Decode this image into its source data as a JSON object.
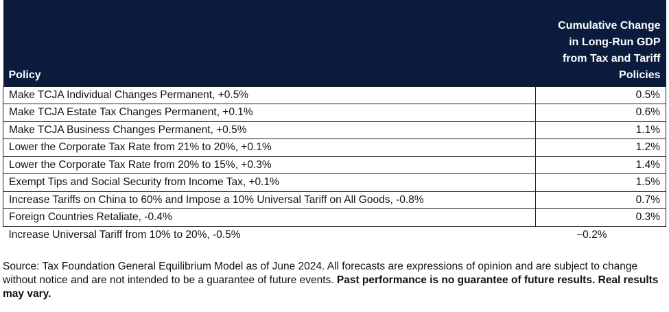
{
  "table": {
    "header": {
      "policy": "Policy",
      "change_lines": [
        "Cumulative Change",
        "in Long-Run GDP",
        "from Tax and Tariff",
        "Policies"
      ]
    },
    "rows": [
      {
        "policy": "Make TCJA Individual Changes Permanent, +0.5%",
        "value": "0.5%"
      },
      {
        "policy": "Make TCJA Estate Tax Changes Permanent, +0.1%",
        "value": "0.6%"
      },
      {
        "policy": "Make TCJA Business Changes Permanent, +0.5%",
        "value": "1.1%"
      },
      {
        "policy": "Lower the Corporate Tax Rate from 21% to 20%, +0.1%",
        "value": "1.2%"
      },
      {
        "policy": "Lower the Corporate Tax Rate from 20% to 15%, +0.3%",
        "value": "1.4%"
      },
      {
        "policy": "Exempt Tips and Social Security from Income Tax, +0.1%",
        "value": "1.5%"
      },
      {
        "policy": "Increase Tariffs on China to 60% and Impose a 10% Universal Tariff on All Goods, -0.8%",
        "value": "0.7%"
      },
      {
        "policy": "Foreign Countries Retaliate, -0.4%",
        "value": "0.3%"
      },
      {
        "policy": "Increase Universal Tariff from 10% to 20%, -0.5%",
        "value": "−0.2%"
      }
    ]
  },
  "source": {
    "normal": "Source: Tax Foundation General Equilibrium Model as of June 2024. All forecasts are expressions of opinion and are subject to change without notice and are not intended to be a guarantee of future events. ",
    "bold": "Past performance is no guarantee of future results. Real results may vary."
  }
}
